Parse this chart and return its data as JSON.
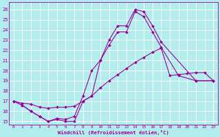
{
  "xlabel": "Windchill (Refroidissement éolien,°C)",
  "background_color": "#b3ecec",
  "grid_color": "#ffffff",
  "line_color": "#990099",
  "xlim": [
    -0.5,
    23.5
  ],
  "ylim": [
    14.7,
    26.7
  ],
  "yticks": [
    15,
    16,
    17,
    18,
    19,
    20,
    21,
    22,
    23,
    24,
    25,
    26
  ],
  "xticks": [
    0,
    1,
    2,
    3,
    4,
    5,
    6,
    7,
    8,
    9,
    10,
    11,
    12,
    13,
    14,
    15,
    16,
    17,
    18,
    19,
    20,
    21,
    22,
    23
  ],
  "line1_x": [
    0,
    1,
    2,
    3,
    4,
    5,
    6,
    7,
    8,
    9,
    10,
    11,
    12,
    13,
    14,
    15,
    16,
    17,
    21,
    23
  ],
  "line1_y": [
    17.0,
    16.6,
    16.0,
    15.5,
    15.0,
    15.2,
    15.0,
    15.0,
    17.0,
    17.5,
    21.0,
    23.0,
    24.4,
    24.4,
    26.0,
    25.8,
    24.4,
    22.8,
    19.0,
    19.0
  ],
  "line2_x": [
    0,
    1,
    2,
    3,
    4,
    5,
    6,
    7,
    8,
    9,
    10,
    11,
    12,
    13,
    14,
    15,
    16,
    17,
    19,
    21,
    23
  ],
  "line2_y": [
    17.0,
    16.6,
    16.0,
    15.5,
    15.0,
    15.3,
    15.2,
    15.5,
    17.5,
    20.0,
    21.0,
    22.5,
    23.8,
    23.8,
    25.8,
    25.3,
    23.8,
    22.3,
    19.5,
    19.0,
    19.0
  ],
  "line3_x": [
    0,
    1,
    2,
    3,
    4,
    5,
    6,
    7,
    8,
    9,
    10,
    11,
    12,
    13,
    14,
    15,
    16,
    17,
    18,
    19,
    20,
    21,
    22,
    23
  ],
  "line3_y": [
    17.0,
    16.8,
    16.7,
    16.4,
    16.3,
    16.4,
    16.4,
    16.5,
    17.0,
    17.5,
    18.3,
    19.0,
    19.6,
    20.2,
    20.8,
    21.3,
    21.8,
    22.2,
    19.5,
    19.6,
    19.7,
    19.8,
    19.8,
    19.0
  ]
}
